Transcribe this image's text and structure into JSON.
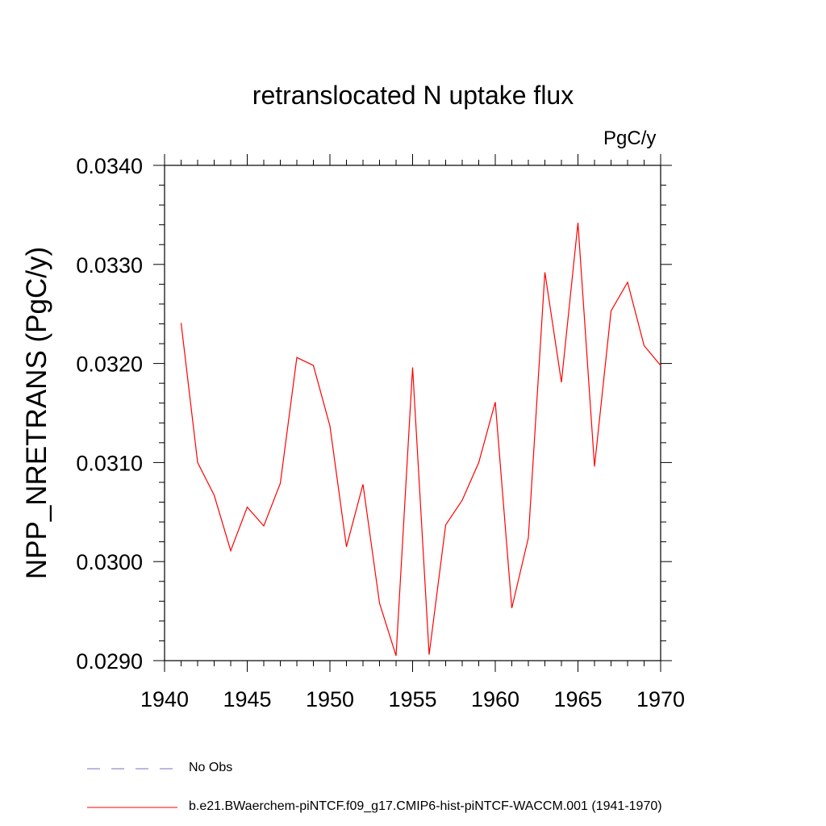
{
  "chart_data": {
    "type": "line",
    "title": "retranslocated N uptake flux",
    "units_label": "PgC/y",
    "xlabel": "",
    "ylabel": "NPP_NRETRANS  (PgC/y)",
    "xlim": [
      1940,
      1970
    ],
    "ylim": [
      0.029,
      0.034
    ],
    "x_ticks": [
      1940,
      1945,
      1950,
      1955,
      1960,
      1965,
      1970
    ],
    "y_ticks": [
      "0.0290",
      "0.0300",
      "0.0310",
      "0.0320",
      "0.0330",
      "0.0340"
    ],
    "x_tick_labels": [
      "1940",
      "1945",
      "1950",
      "1955",
      "1960",
      "1965",
      "1970"
    ],
    "series": [
      {
        "name": "b.e21.BWaerchem-piNTCF.f09_g17.CMIP6-hist-piNTCF-WACCM.001 (1941-1970)",
        "color": "#ff0000",
        "x": [
          1941,
          1942,
          1943,
          1944,
          1945,
          1946,
          1947,
          1948,
          1949,
          1950,
          1951,
          1952,
          1953,
          1954,
          1955,
          1956,
          1957,
          1958,
          1959,
          1960,
          1961,
          1962,
          1963,
          1964,
          1965,
          1966,
          1967,
          1968,
          1969,
          1970
        ],
        "values": [
          0.03241,
          0.031,
          0.03067,
          0.03011,
          0.03055,
          0.03036,
          0.03079,
          0.03206,
          0.03198,
          0.03137,
          0.03015,
          0.03078,
          0.02958,
          0.02905,
          0.03196,
          0.02906,
          0.03037,
          0.03062,
          0.031,
          0.03161,
          0.02953,
          0.03024,
          0.03292,
          0.03181,
          0.03342,
          0.03096,
          0.03253,
          0.03282,
          0.03218,
          0.03198
        ]
      }
    ],
    "legend": [
      {
        "label": "No Obs",
        "color": "#7a6fc0",
        "style": "dashed"
      },
      {
        "label": "b.e21.BWaerchem-piNTCF.f09_g17.CMIP6-hist-piNTCF-WACCM.001 (1941-1970)",
        "color": "#ff0000",
        "style": "solid"
      }
    ],
    "legend_placement": "bottom",
    "grid": false
  }
}
